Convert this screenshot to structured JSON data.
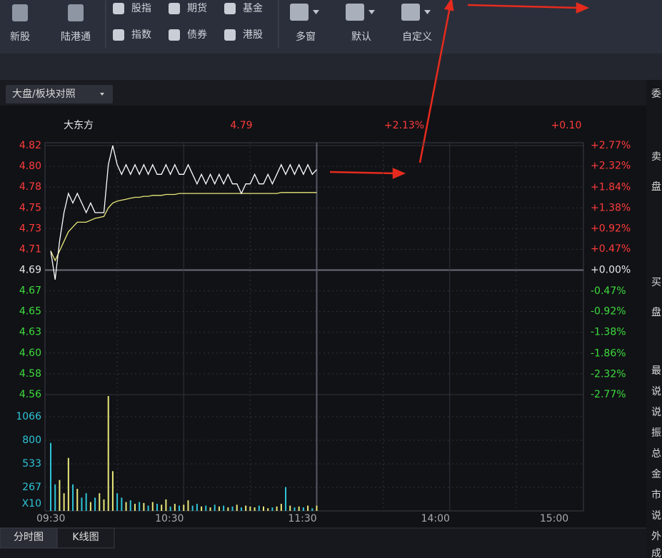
{
  "toolbar": {
    "big_items": [
      "新股",
      "陆港通"
    ],
    "small_items": [
      "股指",
      "期货",
      "基金",
      "指数",
      "债券",
      "港股"
    ],
    "view_items": [
      "多窗",
      "默认",
      "自定义"
    ]
  },
  "tab": "大盘/板块对照",
  "chart": {
    "stock_name": "大东方",
    "price": "4.79",
    "change_pct": "+2.13%",
    "change": "+0.10",
    "ylim": [
      4.56,
      4.82
    ],
    "yticks": [
      {
        "value": 4.82,
        "label": "4.82"
      },
      {
        "value": 4.79833,
        "label": "4.80"
      },
      {
        "value": 4.77667,
        "label": "4.78"
      },
      {
        "value": 4.7549,
        "label": "4.75"
      },
      {
        "value": 4.73333,
        "label": "4.73"
      },
      {
        "value": 4.71167,
        "label": "4.71"
      },
      {
        "value": 4.69,
        "label": "4.69"
      },
      {
        "value": 4.66833,
        "label": "4.67"
      },
      {
        "value": 4.64667,
        "label": "4.65"
      },
      {
        "value": 4.6251,
        "label": "4.63"
      },
      {
        "value": 4.60333,
        "label": "4.60"
      },
      {
        "value": 4.58167,
        "label": "4.58"
      },
      {
        "value": 4.56,
        "label": "4.56"
      }
    ],
    "y2lim": [
      -2.77,
      2.77
    ],
    "y2ticks": [
      {
        "value": 2.77,
        "label": "+2.77%"
      },
      {
        "value": 2.32,
        "label": "+2.32%"
      },
      {
        "value": 1.84,
        "label": "+1.84%"
      },
      {
        "value": 1.38,
        "label": "+1.38%"
      },
      {
        "value": 0.92,
        "label": "+0.92%"
      },
      {
        "value": 0.47,
        "label": "+0.47%"
      },
      {
        "value": 0,
        "label": "+0.00%"
      },
      {
        "value": -0.47,
        "label": "-0.47%"
      },
      {
        "value": -0.92,
        "label": "-0.92%"
      },
      {
        "value": -1.38,
        "label": "-1.38%"
      },
      {
        "value": -1.86,
        "label": "-1.86%"
      },
      {
        "value": -2.32,
        "label": "-2.32%"
      },
      {
        "value": -2.77,
        "label": "-2.77%"
      }
    ],
    "volume_lim": [
      0,
      1333
    ],
    "volume_ticks": [
      1066,
      800,
      533,
      267
    ],
    "volume_unit": "X10",
    "xticks": [
      "09:30",
      "10:30",
      "11:30",
      "14:00",
      "15:00"
    ],
    "price_color": "#ffffff",
    "avg_color": "#e8e87a",
    "up_color": "#e8e87a",
    "down_color": "#2ec4d6",
    "price_values": [
      4.71,
      4.68,
      4.72,
      4.75,
      4.77,
      4.76,
      4.77,
      4.76,
      4.75,
      4.76,
      4.75,
      4.75,
      4.75,
      4.8,
      4.82,
      4.8,
      4.79,
      4.8,
      4.79,
      4.8,
      4.79,
      4.8,
      4.79,
      4.8,
      4.79,
      4.79,
      4.8,
      4.79,
      4.8,
      4.79,
      4.79,
      4.8,
      4.79,
      4.78,
      4.79,
      4.78,
      4.79,
      4.78,
      4.79,
      4.78,
      4.79,
      4.78,
      4.78,
      4.77,
      4.78,
      4.78,
      4.79,
      4.78,
      4.78,
      4.79,
      4.78,
      4.79,
      4.8,
      4.79,
      4.8,
      4.79,
      4.8,
      4.79,
      4.8,
      4.79,
      4.795
    ],
    "avg_values": [
      4.71,
      4.7,
      4.71,
      4.72,
      4.73,
      4.735,
      4.74,
      4.74,
      4.74,
      4.742,
      4.744,
      4.745,
      4.746,
      4.755,
      4.76,
      4.762,
      4.763,
      4.764,
      4.765,
      4.766,
      4.766,
      4.767,
      4.767,
      4.768,
      4.768,
      4.768,
      4.769,
      4.769,
      4.769,
      4.77,
      4.77,
      4.77,
      4.77,
      4.77,
      4.77,
      4.77,
      4.77,
      4.77,
      4.77,
      4.77,
      4.77,
      4.77,
      4.77,
      4.77,
      4.77,
      4.77,
      4.77,
      4.77,
      4.77,
      4.77,
      4.77,
      4.77,
      4.771,
      4.771,
      4.771,
      4.771,
      4.771,
      4.771,
      4.771,
      4.771,
      4.771
    ],
    "volume_values": [
      770,
      300,
      350,
      200,
      600,
      300,
      250,
      150,
      200,
      100,
      150,
      200,
      130,
      1300,
      450,
      200,
      150,
      100,
      120,
      80,
      100,
      90,
      60,
      100,
      80,
      70,
      130,
      50,
      80,
      60,
      70,
      120,
      60,
      80,
      50,
      60,
      40,
      70,
      50,
      60,
      40,
      50,
      70,
      40,
      60,
      50,
      40,
      60,
      50,
      30,
      40,
      50,
      80,
      270,
      60,
      40,
      50,
      40,
      60,
      30,
      60
    ]
  },
  "bottom_tabs": [
    "分时图",
    "K线图"
  ],
  "sidebar": [
    "委",
    "卖",
    "盘",
    "买",
    "盘",
    "最",
    "说",
    "说",
    "振",
    "总",
    "金",
    "市",
    "说",
    "外",
    "成"
  ]
}
